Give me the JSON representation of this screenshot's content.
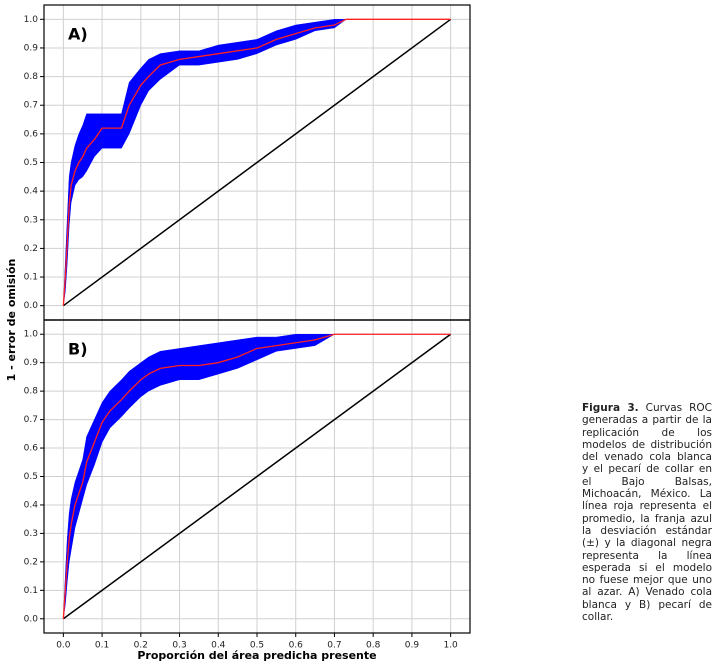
{
  "chart_data": [
    {
      "type": "line",
      "annotation": "A)",
      "y_label": "1 - error de omisión",
      "x": [
        0,
        0.005,
        0.01,
        0.015,
        0.02,
        0.03,
        0.04,
        0.05,
        0.06,
        0.08,
        0.1,
        0.12,
        0.15,
        0.17,
        0.2,
        0.22,
        0.25,
        0.3,
        0.35,
        0.4,
        0.45,
        0.5,
        0.55,
        0.6,
        0.65,
        0.7,
        0.73,
        0.8,
        0.9,
        1.0
      ],
      "series": [
        {
          "color": "#ff2020",
          "values": [
            0,
            0.1,
            0.22,
            0.35,
            0.42,
            0.47,
            0.5,
            0.52,
            0.55,
            0.58,
            0.62,
            0.62,
            0.62,
            0.7,
            0.77,
            0.8,
            0.84,
            0.86,
            0.87,
            0.88,
            0.89,
            0.9,
            0.93,
            0.95,
            0.97,
            0.98,
            1,
            1,
            1,
            1
          ]
        }
      ],
      "band": {
        "color": "#0000ff",
        "upper": [
          0,
          0.15,
          0.3,
          0.45,
          0.5,
          0.56,
          0.6,
          0.63,
          0.67,
          0.67,
          0.67,
          0.67,
          0.67,
          0.78,
          0.83,
          0.86,
          0.88,
          0.89,
          0.89,
          0.91,
          0.92,
          0.93,
          0.96,
          0.98,
          0.99,
          1,
          1,
          1,
          1,
          1
        ],
        "lower": [
          0,
          0.05,
          0.15,
          0.28,
          0.36,
          0.42,
          0.44,
          0.45,
          0.47,
          0.52,
          0.55,
          0.55,
          0.55,
          0.6,
          0.7,
          0.75,
          0.79,
          0.84,
          0.84,
          0.85,
          0.86,
          0.88,
          0.91,
          0.93,
          0.96,
          0.97,
          1,
          1,
          1,
          1
        ]
      },
      "diagonal": {
        "color": "#000000",
        "x": [
          0,
          1
        ],
        "values": [
          0,
          1
        ]
      },
      "xlim": [
        -0.05,
        1.05
      ],
      "xticks": [
        0,
        0.1,
        0.2,
        0.3,
        0.4,
        0.5,
        0.6,
        0.7,
        0.8,
        0.9,
        1
      ],
      "ylim": [
        -0.05,
        1.05
      ],
      "yticks": [
        {
          "value": 0,
          "label": "0.0"
        },
        0.1,
        0.2,
        0.3,
        0.4,
        0.5,
        0.6,
        0.7,
        0.8,
        0.9,
        {
          "value": 1,
          "label": "1.0"
        }
      ],
      "grid": true
    },
    {
      "type": "line",
      "annotation": "B)",
      "x_label": "Proporción del área predicha presente",
      "x": [
        0,
        0.005,
        0.01,
        0.015,
        0.02,
        0.03,
        0.04,
        0.05,
        0.06,
        0.08,
        0.1,
        0.12,
        0.15,
        0.17,
        0.2,
        0.22,
        0.25,
        0.3,
        0.35,
        0.4,
        0.45,
        0.5,
        0.55,
        0.6,
        0.65,
        0.7,
        0.73,
        0.8,
        0.9,
        1.0
      ],
      "series": [
        {
          "color": "#ff2020",
          "values": [
            0,
            0.1,
            0.2,
            0.28,
            0.33,
            0.4,
            0.44,
            0.48,
            0.55,
            0.62,
            0.69,
            0.73,
            0.77,
            0.8,
            0.84,
            0.86,
            0.88,
            0.89,
            0.89,
            0.9,
            0.92,
            0.95,
            0.96,
            0.97,
            0.98,
            1,
            1,
            1,
            1,
            1
          ]
        }
      ],
      "band": {
        "color": "#0000ff",
        "upper": [
          0,
          0.15,
          0.28,
          0.37,
          0.42,
          0.48,
          0.52,
          0.56,
          0.64,
          0.7,
          0.76,
          0.8,
          0.84,
          0.87,
          0.9,
          0.92,
          0.94,
          0.95,
          0.96,
          0.97,
          0.98,
          0.99,
          0.99,
          1,
          1,
          1,
          1,
          1,
          1,
          1
        ],
        "lower": [
          0,
          0.05,
          0.13,
          0.2,
          0.24,
          0.32,
          0.37,
          0.42,
          0.47,
          0.54,
          0.62,
          0.67,
          0.71,
          0.74,
          0.78,
          0.8,
          0.82,
          0.84,
          0.84,
          0.86,
          0.88,
          0.91,
          0.94,
          0.95,
          0.96,
          1,
          1,
          1,
          1,
          1
        ]
      },
      "diagonal": {
        "color": "#000000",
        "x": [
          0,
          1
        ],
        "values": [
          0,
          1
        ]
      },
      "xlim": [
        -0.05,
        1.05
      ],
      "xticks": [
        {
          "value": 0,
          "label": "0.0"
        },
        0.1,
        0.2,
        0.3,
        0.4,
        0.5,
        0.6,
        0.7,
        0.8,
        0.9,
        {
          "value": 1,
          "label": "1.0"
        }
      ],
      "ylim": [
        -0.05,
        1.05
      ],
      "yticks": [
        {
          "value": 0,
          "label": "0.0"
        },
        0.1,
        0.2,
        0.3,
        0.4,
        0.5,
        0.6,
        0.7,
        0.8,
        0.9,
        {
          "value": 1,
          "label": "1.0"
        }
      ],
      "grid": true
    }
  ],
  "caption": {
    "label": "Figura 3.",
    "text": "Curvas ROC generadas a partir de la replicación de los modelos de distribución del venado cola blanca y el pecarí de collar en el Bajo Balsas, Michoacán, México. La línea roja representa el promedio, la franja azul la desviación estándar (±) y la diagonal negra representa la línea esperada si el modelo no fuese mejor que uno al azar. A) Venado cola blanca y B) pecarí de collar."
  }
}
